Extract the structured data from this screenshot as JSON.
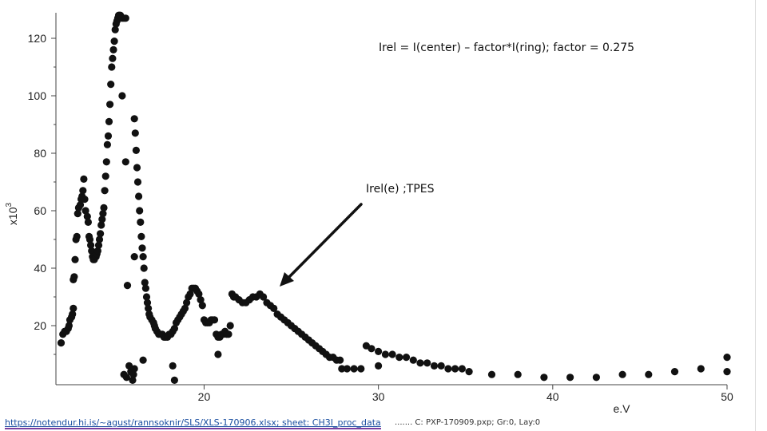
{
  "chart_data": {
    "type": "scatter",
    "title": "",
    "xlabel": "e.V",
    "ylabel": "x10",
    "ylabel_exponent": "3",
    "xlim": [
      11.5,
      50
    ],
    "ylim": [
      0,
      128
    ],
    "x_ticks": [
      20,
      30,
      40,
      50
    ],
    "y_ticks": [
      20,
      40,
      60,
      80,
      100,
      120
    ],
    "grid": false,
    "legend": "none",
    "marker_color": "#111111",
    "annotations": [
      "Irel = I(center) – factor*I(ring); factor = 0.275",
      "Irel(e) ;TPES"
    ],
    "series": [
      {
        "points": [
          [
            11.8,
            14
          ],
          [
            11.9,
            17
          ],
          [
            12.0,
            18
          ],
          [
            12.1,
            18
          ],
          [
            12.2,
            19
          ],
          [
            12.25,
            20
          ],
          [
            12.3,
            22
          ],
          [
            12.4,
            23
          ],
          [
            12.45,
            24
          ],
          [
            12.5,
            26
          ],
          [
            12.5,
            36
          ],
          [
            12.55,
            37
          ],
          [
            12.6,
            43
          ],
          [
            12.65,
            50
          ],
          [
            12.7,
            51
          ],
          [
            12.75,
            59
          ],
          [
            12.8,
            61
          ],
          [
            12.9,
            62
          ],
          [
            12.95,
            64
          ],
          [
            13.0,
            65
          ],
          [
            13.05,
            67
          ],
          [
            13.1,
            71
          ],
          [
            13.15,
            64
          ],
          [
            13.2,
            60
          ],
          [
            13.3,
            58
          ],
          [
            13.35,
            56
          ],
          [
            13.4,
            51
          ],
          [
            13.45,
            50
          ],
          [
            13.5,
            48
          ],
          [
            13.55,
            46
          ],
          [
            13.6,
            44
          ],
          [
            13.65,
            43
          ],
          [
            13.7,
            43
          ],
          [
            13.8,
            44
          ],
          [
            13.85,
            45
          ],
          [
            13.9,
            46
          ],
          [
            13.95,
            48
          ],
          [
            14.0,
            50
          ],
          [
            14.05,
            52
          ],
          [
            14.1,
            55
          ],
          [
            14.15,
            57
          ],
          [
            14.2,
            59
          ],
          [
            14.25,
            61
          ],
          [
            14.3,
            67
          ],
          [
            14.35,
            72
          ],
          [
            14.4,
            77
          ],
          [
            14.45,
            83
          ],
          [
            14.5,
            86
          ],
          [
            14.55,
            91
          ],
          [
            14.6,
            97
          ],
          [
            14.65,
            104
          ],
          [
            14.7,
            110
          ],
          [
            14.75,
            113
          ],
          [
            14.8,
            116
          ],
          [
            14.85,
            119
          ],
          [
            14.9,
            123
          ],
          [
            14.95,
            125
          ],
          [
            15.0,
            126
          ],
          [
            15.05,
            127
          ],
          [
            15.1,
            128
          ],
          [
            15.15,
            128
          ],
          [
            15.2,
            128
          ],
          [
            15.3,
            127
          ],
          [
            15.4,
            127
          ],
          [
            15.5,
            127
          ],
          [
            15.3,
            100
          ],
          [
            15.5,
            77
          ],
          [
            15.6,
            34
          ],
          [
            15.4,
            3
          ],
          [
            15.55,
            2
          ],
          [
            15.7,
            6
          ],
          [
            15.8,
            4
          ],
          [
            15.9,
            1
          ],
          [
            15.95,
            3
          ],
          [
            16.0,
            5
          ],
          [
            16.0,
            92
          ],
          [
            16.05,
            87
          ],
          [
            16.1,
            81
          ],
          [
            16.15,
            75
          ],
          [
            16.2,
            70
          ],
          [
            16.25,
            65
          ],
          [
            16.3,
            60
          ],
          [
            16.35,
            56
          ],
          [
            16.4,
            51
          ],
          [
            16.45,
            47
          ],
          [
            16.5,
            44
          ],
          [
            16.0,
            44
          ],
          [
            16.55,
            40
          ],
          [
            16.6,
            35
          ],
          [
            16.65,
            33
          ],
          [
            16.7,
            30
          ],
          [
            16.75,
            28
          ],
          [
            16.8,
            26
          ],
          [
            16.85,
            24
          ],
          [
            16.5,
            8
          ],
          [
            16.9,
            23
          ],
          [
            17.0,
            22
          ],
          [
            17.1,
            21
          ],
          [
            17.15,
            20
          ],
          [
            17.2,
            19
          ],
          [
            17.3,
            18
          ],
          [
            17.4,
            17
          ],
          [
            17.5,
            17
          ],
          [
            17.6,
            17
          ],
          [
            17.7,
            16
          ],
          [
            17.8,
            16
          ],
          [
            17.9,
            16
          ],
          [
            18.0,
            17
          ],
          [
            18.1,
            17
          ],
          [
            18.2,
            18
          ],
          [
            18.3,
            19
          ],
          [
            18.4,
            21
          ],
          [
            18.5,
            22
          ],
          [
            18.6,
            23
          ],
          [
            18.7,
            24
          ],
          [
            18.8,
            25
          ],
          [
            18.9,
            26
          ],
          [
            19.0,
            28
          ],
          [
            19.1,
            30
          ],
          [
            19.2,
            31
          ],
          [
            19.3,
            33
          ],
          [
            19.4,
            33
          ],
          [
            19.5,
            33
          ],
          [
            19.6,
            32
          ],
          [
            19.7,
            31
          ],
          [
            19.8,
            29
          ],
          [
            19.9,
            27
          ],
          [
            18.3,
            1
          ],
          [
            18.2,
            6
          ],
          [
            20.0,
            22
          ],
          [
            20.1,
            21
          ],
          [
            20.2,
            21
          ],
          [
            20.3,
            21
          ],
          [
            20.4,
            22
          ],
          [
            20.5,
            22
          ],
          [
            20.6,
            22
          ],
          [
            20.7,
            17
          ],
          [
            20.8,
            16
          ],
          [
            20.9,
            16
          ],
          [
            20.8,
            10
          ],
          [
            21.0,
            17
          ],
          [
            21.1,
            17
          ],
          [
            21.2,
            18
          ],
          [
            21.3,
            17
          ],
          [
            21.4,
            17
          ],
          [
            21.5,
            20
          ],
          [
            21.6,
            31
          ],
          [
            21.7,
            30
          ],
          [
            21.8,
            30
          ],
          [
            22.0,
            29
          ],
          [
            22.2,
            28
          ],
          [
            22.4,
            28
          ],
          [
            22.6,
            29
          ],
          [
            22.8,
            30
          ],
          [
            23.0,
            30
          ],
          [
            23.2,
            31
          ],
          [
            23.4,
            30
          ],
          [
            23.6,
            28
          ],
          [
            23.8,
            27
          ],
          [
            24.0,
            26
          ],
          [
            24.2,
            24
          ],
          [
            24.4,
            23
          ],
          [
            24.6,
            22
          ],
          [
            24.8,
            21
          ],
          [
            25.0,
            20
          ],
          [
            25.2,
            19
          ],
          [
            25.4,
            18
          ],
          [
            25.6,
            17
          ],
          [
            25.8,
            16
          ],
          [
            26.0,
            15
          ],
          [
            26.2,
            14
          ],
          [
            26.4,
            13
          ],
          [
            26.6,
            12
          ],
          [
            26.8,
            11
          ],
          [
            27.0,
            10
          ],
          [
            27.2,
            9
          ],
          [
            27.4,
            9
          ],
          [
            27.6,
            8
          ],
          [
            27.8,
            8
          ],
          [
            27.9,
            5
          ],
          [
            28.2,
            5
          ],
          [
            28.6,
            5
          ],
          [
            29.0,
            5
          ],
          [
            29.3,
            13
          ],
          [
            29.6,
            12
          ],
          [
            30.0,
            11
          ],
          [
            30.4,
            10
          ],
          [
            30.8,
            10
          ],
          [
            31.2,
            9
          ],
          [
            31.6,
            9
          ],
          [
            32.0,
            8
          ],
          [
            32.4,
            7
          ],
          [
            32.8,
            7
          ],
          [
            33.2,
            6
          ],
          [
            33.6,
            6
          ],
          [
            34.0,
            5
          ],
          [
            34.4,
            5
          ],
          [
            34.8,
            5
          ],
          [
            35.2,
            4
          ],
          [
            30.0,
            6
          ],
          [
            36.5,
            3
          ],
          [
            38.0,
            3
          ],
          [
            39.5,
            2
          ],
          [
            41.0,
            2
          ],
          [
            42.5,
            2
          ],
          [
            44.0,
            3
          ],
          [
            45.5,
            3
          ],
          [
            47.0,
            4
          ],
          [
            48.5,
            5
          ],
          [
            50.0,
            4
          ],
          [
            50.0,
            9
          ]
        ]
      }
    ]
  },
  "footer": {
    "link_text": "https://notendur.hi.is/~agust/rannsoknir/SLS/XLS-170906.xlsx; sheet: CH3I_proc_data",
    "note_text": "....... C: PXP-170909.pxp; Gr:0, Lay:0"
  }
}
